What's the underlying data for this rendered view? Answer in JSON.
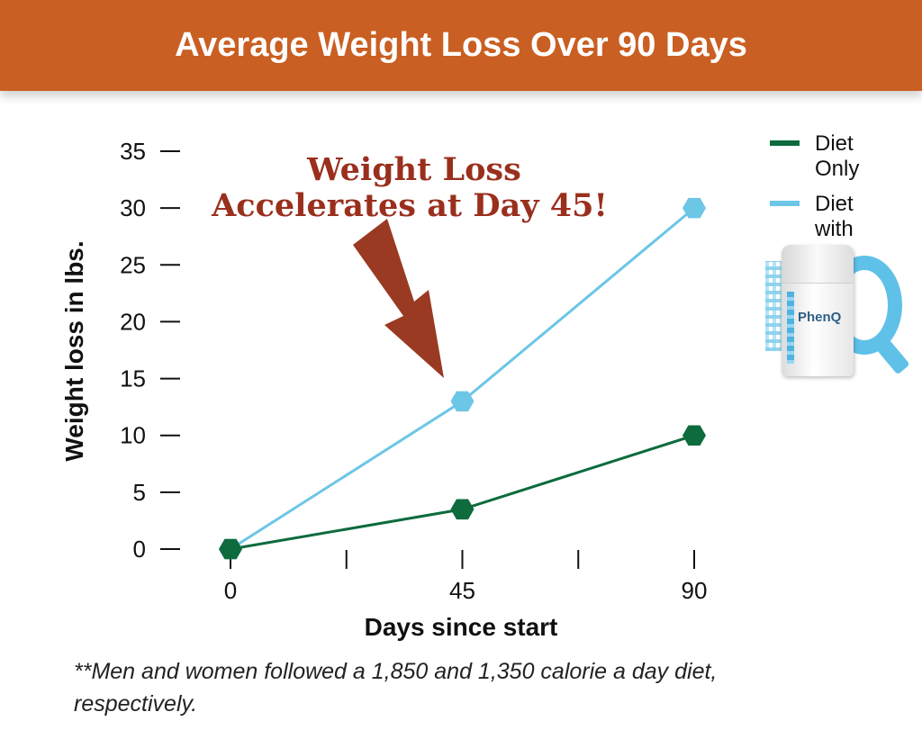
{
  "header": {
    "title": "Average Weight Loss Over 90 Days"
  },
  "chart_data": {
    "type": "line",
    "title": "Average Weight Loss Over 90 Days",
    "xlabel": "Days since start",
    "ylabel": "Weight loss in lbs.",
    "x": [
      0,
      45,
      90
    ],
    "x_ticks": [
      0,
      45,
      90
    ],
    "x_tick_labels": [
      "0",
      "45",
      "90"
    ],
    "y_ticks": [
      0,
      5,
      10,
      15,
      20,
      25,
      30,
      35
    ],
    "y_tick_labels": [
      "0",
      "5",
      "10",
      "15",
      "20",
      "25",
      "30",
      "35"
    ],
    "xlim": [
      0,
      90
    ],
    "ylim": [
      0,
      35
    ],
    "grid": false,
    "legend_position": "top-right",
    "series": [
      {
        "name": "Diet Only",
        "color": "#0d6b3d",
        "values": [
          0,
          3.5,
          10
        ]
      },
      {
        "name": "Diet with",
        "color": "#6cc6e6",
        "values": [
          0,
          13,
          30
        ]
      }
    ],
    "annotation": {
      "line1": "Weight Loss",
      "line2": "Accelerates at Day 45!",
      "color": "#9a2f1d",
      "points_to_x": 45
    }
  },
  "legend": {
    "items": [
      {
        "line1": "Diet",
        "line2": "Only"
      },
      {
        "line1": "Diet",
        "line2": "with"
      }
    ],
    "product_brand": "PhenQ",
    "product_icon": "phenq-bottle-logo"
  },
  "footnote": {
    "line1": "**Men and women followed a 1,850 and 1,350 calorie a day diet,",
    "line2": "respectively."
  }
}
